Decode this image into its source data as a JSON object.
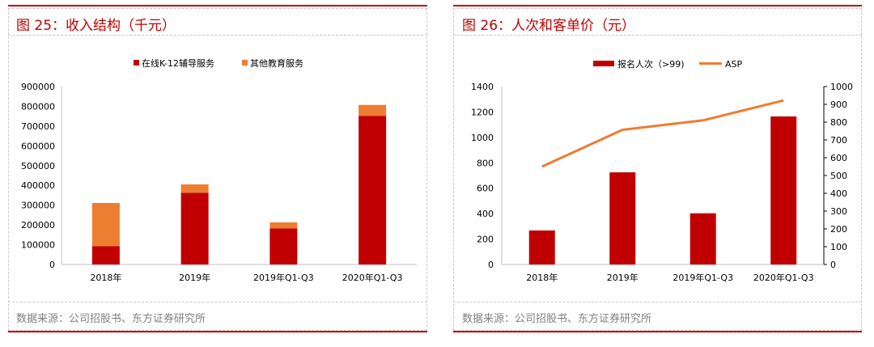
{
  "left": {
    "title": "图 25：收入结构（千元）",
    "source": "数据来源：公司招股书、东方证券研究所",
    "chart_data": {
      "type": "bar",
      "stacked": true,
      "categories": [
        "2018年",
        "2019年",
        "2019年Q1-Q3",
        "2020年Q1-Q3"
      ],
      "series": [
        {
          "name": "在线K-12辅导服务",
          "color": "#c00000",
          "values": [
            93000,
            362000,
            182000,
            752000
          ]
        },
        {
          "name": "其他教育服务",
          "color": "#ed7d31",
          "values": [
            218000,
            43000,
            31000,
            55000
          ]
        }
      ],
      "ylim": [
        0,
        900000
      ],
      "yticks": [
        "0",
        "100000",
        "200000",
        "300000",
        "400000",
        "500000",
        "600000",
        "700000",
        "800000",
        "900000"
      ],
      "legend": "top"
    }
  },
  "right": {
    "title": "图 26：人次和客单价（元）",
    "source": "数据来源：公司招股书、东方证券研究所",
    "chart_data": {
      "type": "bar+line",
      "categories": [
        "2018年",
        "2019年",
        "2019年Q1-Q3",
        "2020年Q1-Q3"
      ],
      "series": [
        {
          "name": "报名人次（>99)",
          "type": "bar",
          "axis": "left",
          "color": "#c00000",
          "values": [
            268,
            725,
            403,
            1165
          ]
        },
        {
          "name": "ASP",
          "type": "line",
          "axis": "right",
          "color": "#ed7d31",
          "values": [
            550,
            757,
            810,
            922
          ]
        }
      ],
      "ylim_left": [
        0,
        1400
      ],
      "ylim_right": [
        0,
        1000
      ],
      "yticks_left": [
        "0",
        "200",
        "400",
        "600",
        "800",
        "1000",
        "1200",
        "1400"
      ],
      "yticks_right": [
        "0",
        "100",
        "200",
        "300",
        "400",
        "500",
        "600",
        "700",
        "800",
        "900",
        "1000"
      ],
      "legend": "top"
    }
  }
}
